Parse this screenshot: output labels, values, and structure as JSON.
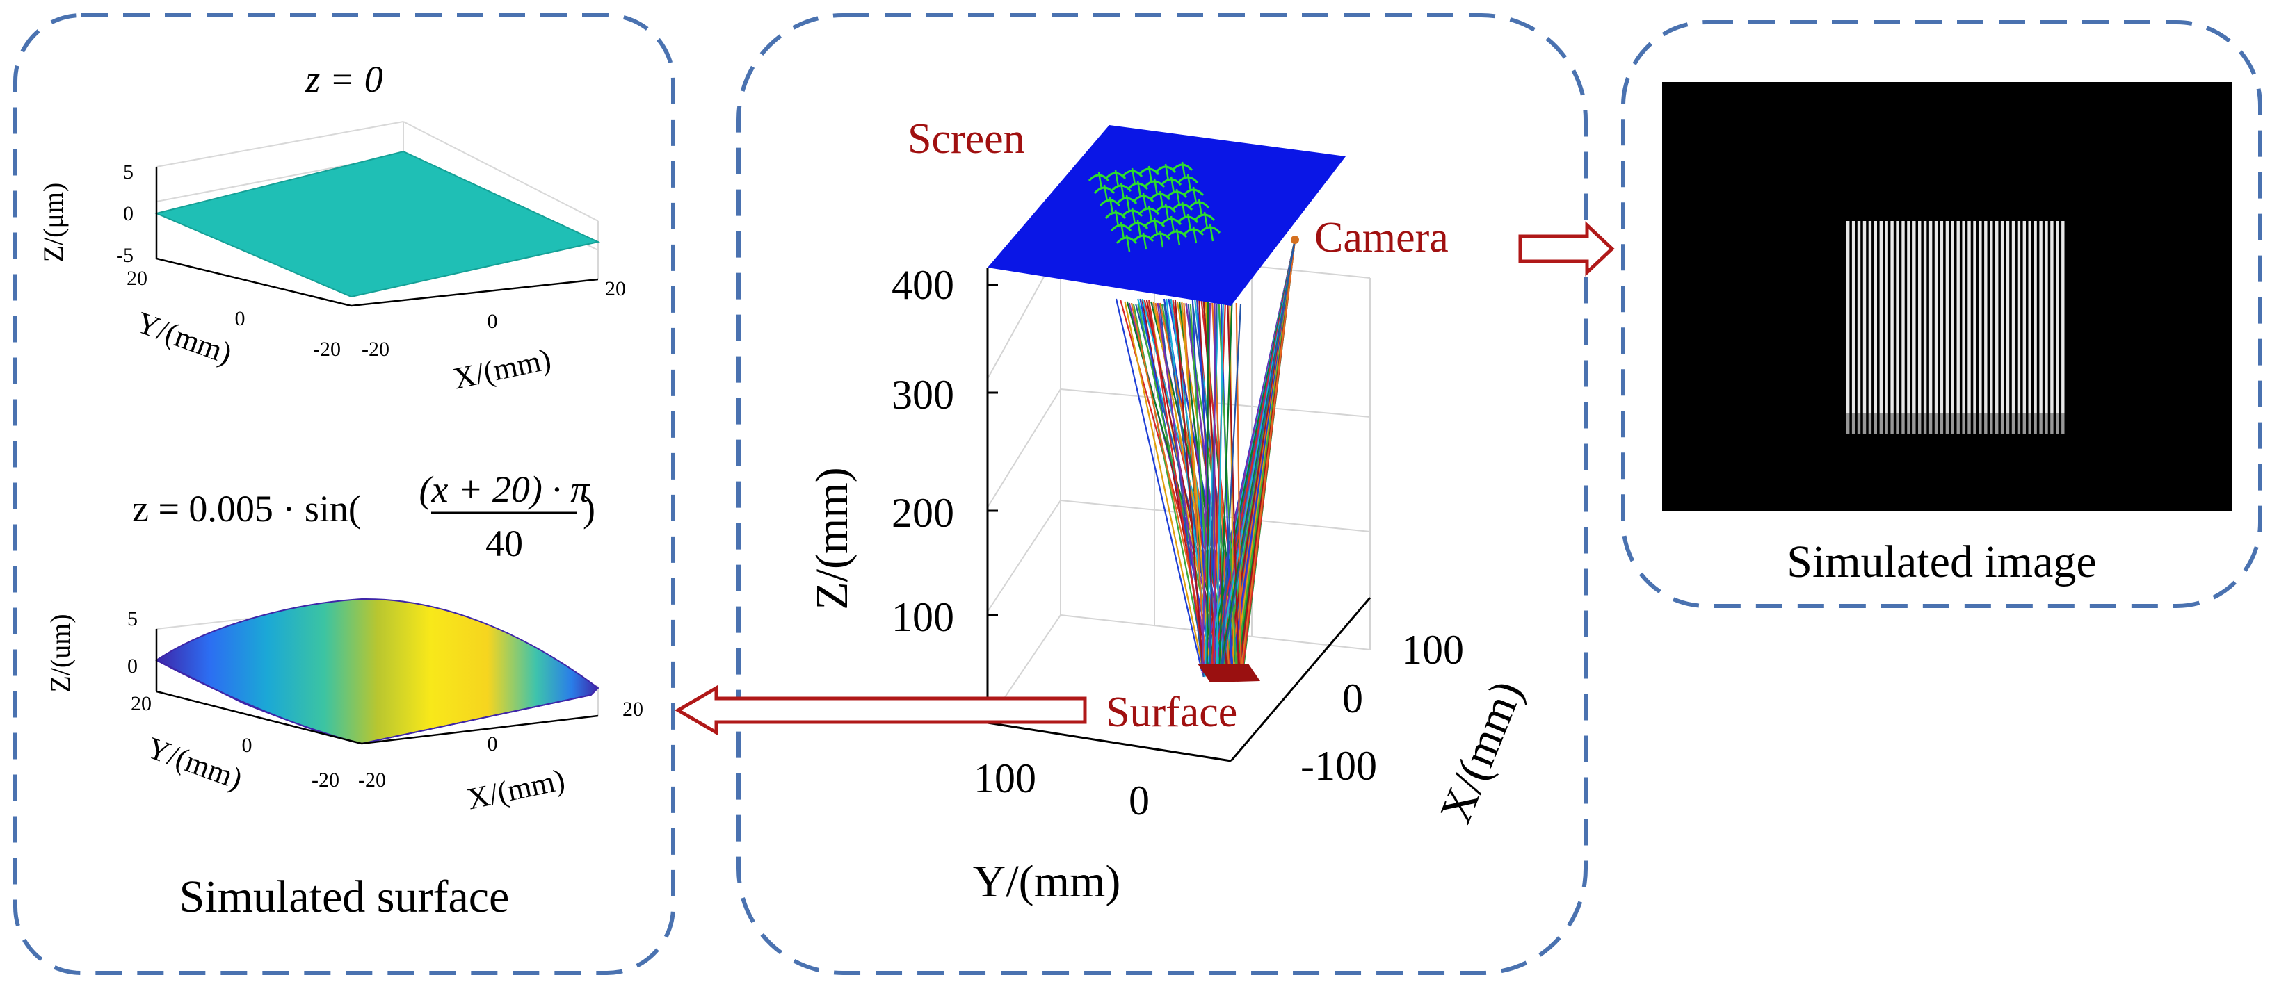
{
  "colors": {
    "dash_border": "#4a72b0",
    "arrow_red": "#b01818",
    "label_red": "#a01010",
    "screen_blue": "#0a16e6",
    "flat_surface": "#1fbfb5",
    "pattern_green": "#2dde2d",
    "surface_red": "#9a1010"
  },
  "left_panel": {
    "caption": "Simulated surface",
    "plot1": {
      "title": "z = 0",
      "zlabel": "Z/(μm)",
      "xlabel": "X/(mm)",
      "ylabel": "Y/(mm)",
      "z_ticks": [
        "5",
        "0",
        "-5"
      ],
      "y_ticks": [
        "20",
        "0",
        "-20"
      ],
      "x_ticks": [
        "-20",
        "0",
        "20"
      ]
    },
    "plot2": {
      "title_prefix": "z = 0.005 · sin(",
      "title_num": "(x + 20) · π",
      "title_den": "40",
      "title_suffix": ")",
      "zlabel": "Z/(um)",
      "xlabel": "X/(mm)",
      "ylabel": "Y/(mm)",
      "z_ticks": [
        "5",
        "0"
      ],
      "y_ticks": [
        "20",
        "0",
        "-20"
      ],
      "x_ticks": [
        "-20",
        "0",
        "20"
      ],
      "colormap": "parula"
    }
  },
  "center_panel": {
    "screen_label": "Screen",
    "camera_label": "Camera",
    "surface_label": "Surface",
    "zlabel": "Z/(mm)",
    "ylabel": "Y/(mm)",
    "xlabel": "X/(mm)",
    "z_ticks": [
      "400",
      "300",
      "200",
      "100"
    ],
    "y_ticks": [
      "100",
      "0"
    ],
    "x_ticks": [
      "100",
      "0",
      "-100"
    ]
  },
  "right_panel": {
    "caption": "Simulated image",
    "fringe_count": 40
  }
}
